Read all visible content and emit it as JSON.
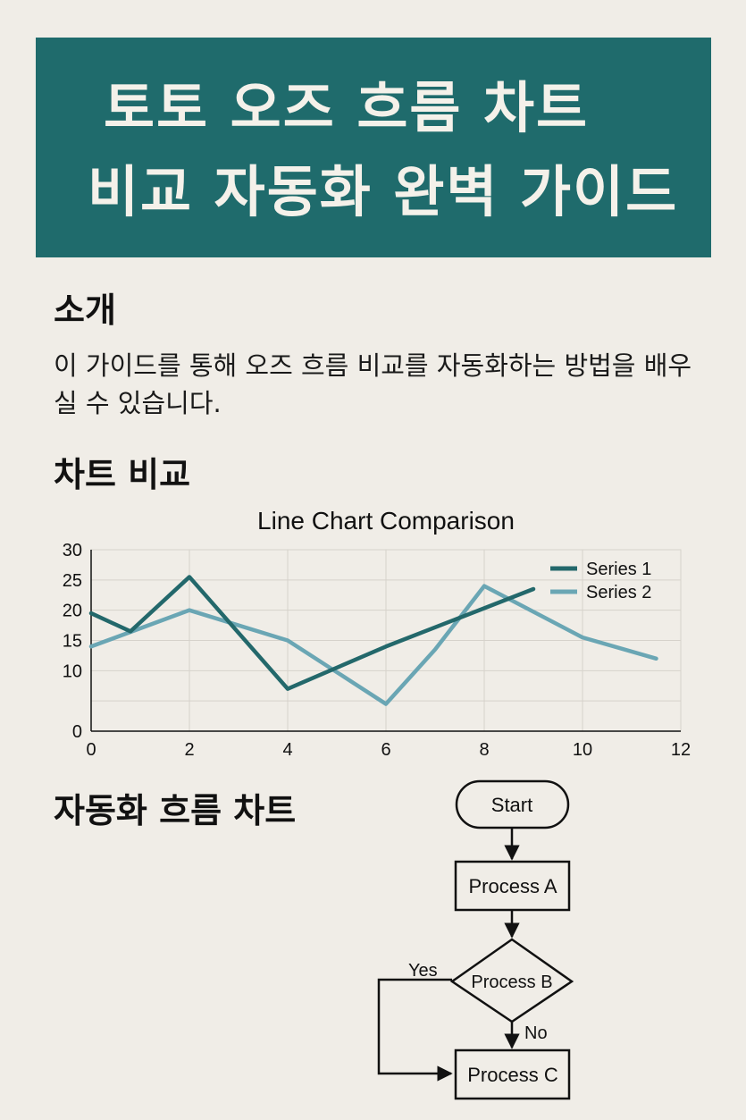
{
  "header": {
    "title_line1": "토토 오즈 흐름 차트",
    "title_line2": "비교 자동화 완벽 가이드"
  },
  "intro": {
    "heading": "소개",
    "text": "이 가이드를 통해 오즈 흐름 비교를 자동화하는 방법을 배우실 수 있습니다."
  },
  "chart_section": {
    "heading": "차트 비교"
  },
  "chart_data": {
    "type": "line",
    "title": "Line Chart Comparison",
    "xlabel": "",
    "ylabel": "",
    "xlim": [
      0,
      12
    ],
    "ylim": [
      0,
      30
    ],
    "x_ticks": [
      0,
      2,
      4,
      6,
      8,
      10,
      12
    ],
    "y_ticks": [
      0,
      10,
      15,
      20,
      25,
      30
    ],
    "grid": true,
    "legend_position": "top-right",
    "series": [
      {
        "name": "Series 1",
        "color": "#23686b",
        "points": [
          [
            0,
            19.5
          ],
          [
            0.8,
            16.5
          ],
          [
            2,
            25.5
          ],
          [
            4,
            7
          ],
          [
            6,
            14
          ],
          [
            9,
            23.5
          ]
        ]
      },
      {
        "name": "Series 2",
        "color": "#6aa6b4",
        "points": [
          [
            0,
            14
          ],
          [
            2,
            20
          ],
          [
            4,
            15
          ],
          [
            6,
            4.5
          ],
          [
            7,
            13.5
          ],
          [
            8,
            24
          ],
          [
            10,
            15.5
          ],
          [
            11.5,
            12
          ]
        ]
      }
    ]
  },
  "flow_section": {
    "heading": "자동화 흐름 차트"
  },
  "flowchart": {
    "start": "Start",
    "process_a": "Process A",
    "process_b": "Process B",
    "process_c": "Process C",
    "yes_label": "Yes",
    "no_label": "No"
  }
}
